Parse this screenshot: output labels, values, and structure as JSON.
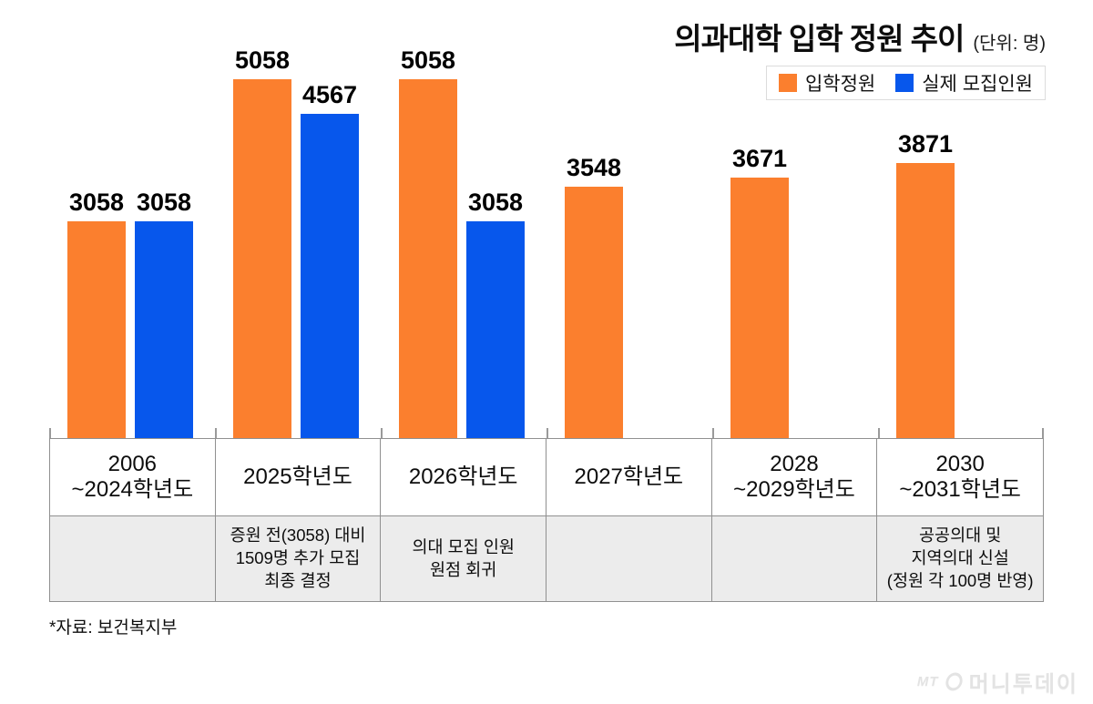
{
  "title": {
    "text": "의과대학 입학 정원 추이",
    "unit": "(단위: 명)"
  },
  "colors": {
    "quota_orange": "#FB7F2E",
    "actual_blue": "#0757EC",
    "table_border": "#909090",
    "notes_row_bg": "#ececec",
    "legend_border": "#dcdcdc",
    "label_black": "#000000"
  },
  "chart_data": {
    "type": "bar",
    "title": "의과대학 입학 정원 추이",
    "unit_label": "(단위: 명)",
    "categories": [
      "2006\n~2024학년도",
      "2025학년도",
      "2026학년도",
      "2027학년도",
      "2028\n~2029학년도",
      "2030\n~2031학년도"
    ],
    "series": [
      {
        "name": "입학정원",
        "color": "#FB7F2E",
        "values": [
          3058,
          5058,
          5058,
          3548,
          3671,
          3871
        ]
      },
      {
        "name": "실제 모집인원",
        "color": "#0757EC",
        "values": [
          3058,
          4567,
          3058,
          null,
          null,
          null
        ]
      }
    ],
    "notes": [
      "",
      "증원 전(3058) 대비\n1509명 추가 모집\n최종 결정",
      "의대 모집 인원\n원점 회귀",
      "",
      "",
      "공공의대 및\n지역의대 신설\n(정원 각 100명 반영)"
    ],
    "ylim": [
      0,
      5058
    ],
    "grid": false,
    "value_labels": true,
    "legend_position": "top-right"
  },
  "footer": {
    "source": "*자료: 보건복지부"
  },
  "watermark": {
    "mt": "MT",
    "name": "머니투데이"
  }
}
